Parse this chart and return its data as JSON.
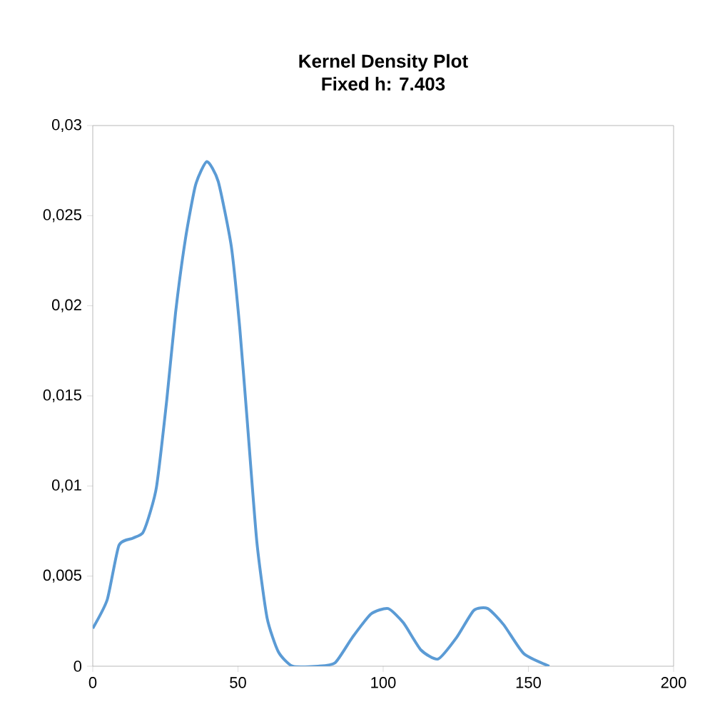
{
  "chart_data": {
    "type": "line",
    "title": "Kernel Density Plot",
    "subtitle": "Fixed h: 7.403",
    "series": [
      {
        "color": "#5b9bd5",
        "x": [
          0,
          5,
          9,
          13.8,
          17.2,
          19.7,
          22,
          25.5,
          28.5,
          31.9,
          35.4,
          39.3,
          43.2,
          47.7,
          50.6,
          53.1,
          56.5,
          60,
          63.9,
          68.8,
          77.6,
          83.5,
          89.4,
          95.8,
          101.7,
          107,
          113,
          118.9,
          125.3,
          131.2,
          136,
          141.5,
          148.4,
          157.2
        ],
        "values": [
          0.0021,
          0.0037,
          0.0067,
          0.0071,
          0.0074,
          0.0085,
          0.01,
          0.0148,
          0.0196,
          0.0237,
          0.0267,
          0.028,
          0.0269,
          0.0233,
          0.0188,
          0.0138,
          0.0069,
          0.0027,
          0.0008,
          0,
          0,
          0.0002,
          0.0016,
          0.0029,
          0.0032,
          0.0024,
          0.0009,
          0.0004,
          0.0016,
          0.0031,
          0.0032,
          0.0023,
          0.0007,
          0
        ]
      }
    ],
    "xlim": [
      0,
      200
    ],
    "xticks": [
      0,
      50,
      100,
      150,
      200
    ],
    "ylim": [
      0,
      0.03
    ],
    "yticks": [
      0,
      {
        "value": 0.005,
        "label": "0,005"
      },
      {
        "value": 0.01,
        "label": "0,01"
      },
      {
        "value": 0.015,
        "label": "0,015"
      },
      {
        "value": 0.02,
        "label": "0,02"
      },
      {
        "value": 0.025,
        "label": "0,025"
      },
      {
        "value": 0.03,
        "label": "0,03"
      }
    ],
    "grid": false,
    "legend": false,
    "marker": "none",
    "line_style": "solid"
  }
}
